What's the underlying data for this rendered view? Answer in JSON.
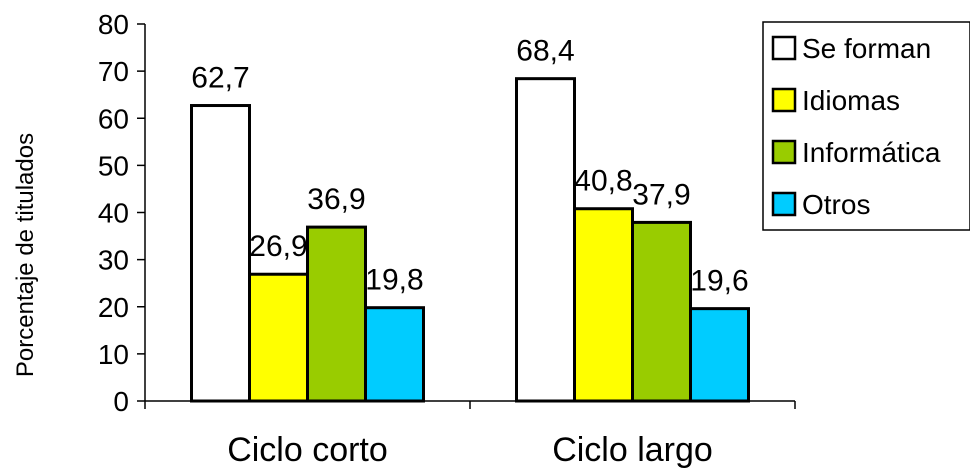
{
  "chart_data": {
    "type": "bar",
    "categories": [
      "Ciclo corto",
      "Ciclo largo"
    ],
    "series": [
      {
        "name": "Se forman",
        "values": [
          62.7,
          68.4
        ],
        "labels": [
          "62,7",
          "68,4"
        ],
        "color": "#ffffff"
      },
      {
        "name": "Idiomas",
        "values": [
          26.9,
          40.8
        ],
        "labels": [
          "26,9",
          "40,8"
        ],
        "color": "#ffff00"
      },
      {
        "name": "Informática",
        "values": [
          36.9,
          37.9
        ],
        "labels": [
          "36,9",
          "37,9"
        ],
        "color": "#99cc00"
      },
      {
        "name": "Otros",
        "values": [
          19.8,
          19.6
        ],
        "labels": [
          "19,8",
          "19,6"
        ],
        "color": "#00ccff"
      }
    ],
    "ylabel": "Porcentaje de titulados",
    "ylim": [
      0,
      80
    ],
    "yticks": [
      "0",
      "10",
      "20",
      "30",
      "40",
      "50",
      "60",
      "70",
      "80"
    ],
    "grid": false,
    "legend_position": "top-right"
  }
}
